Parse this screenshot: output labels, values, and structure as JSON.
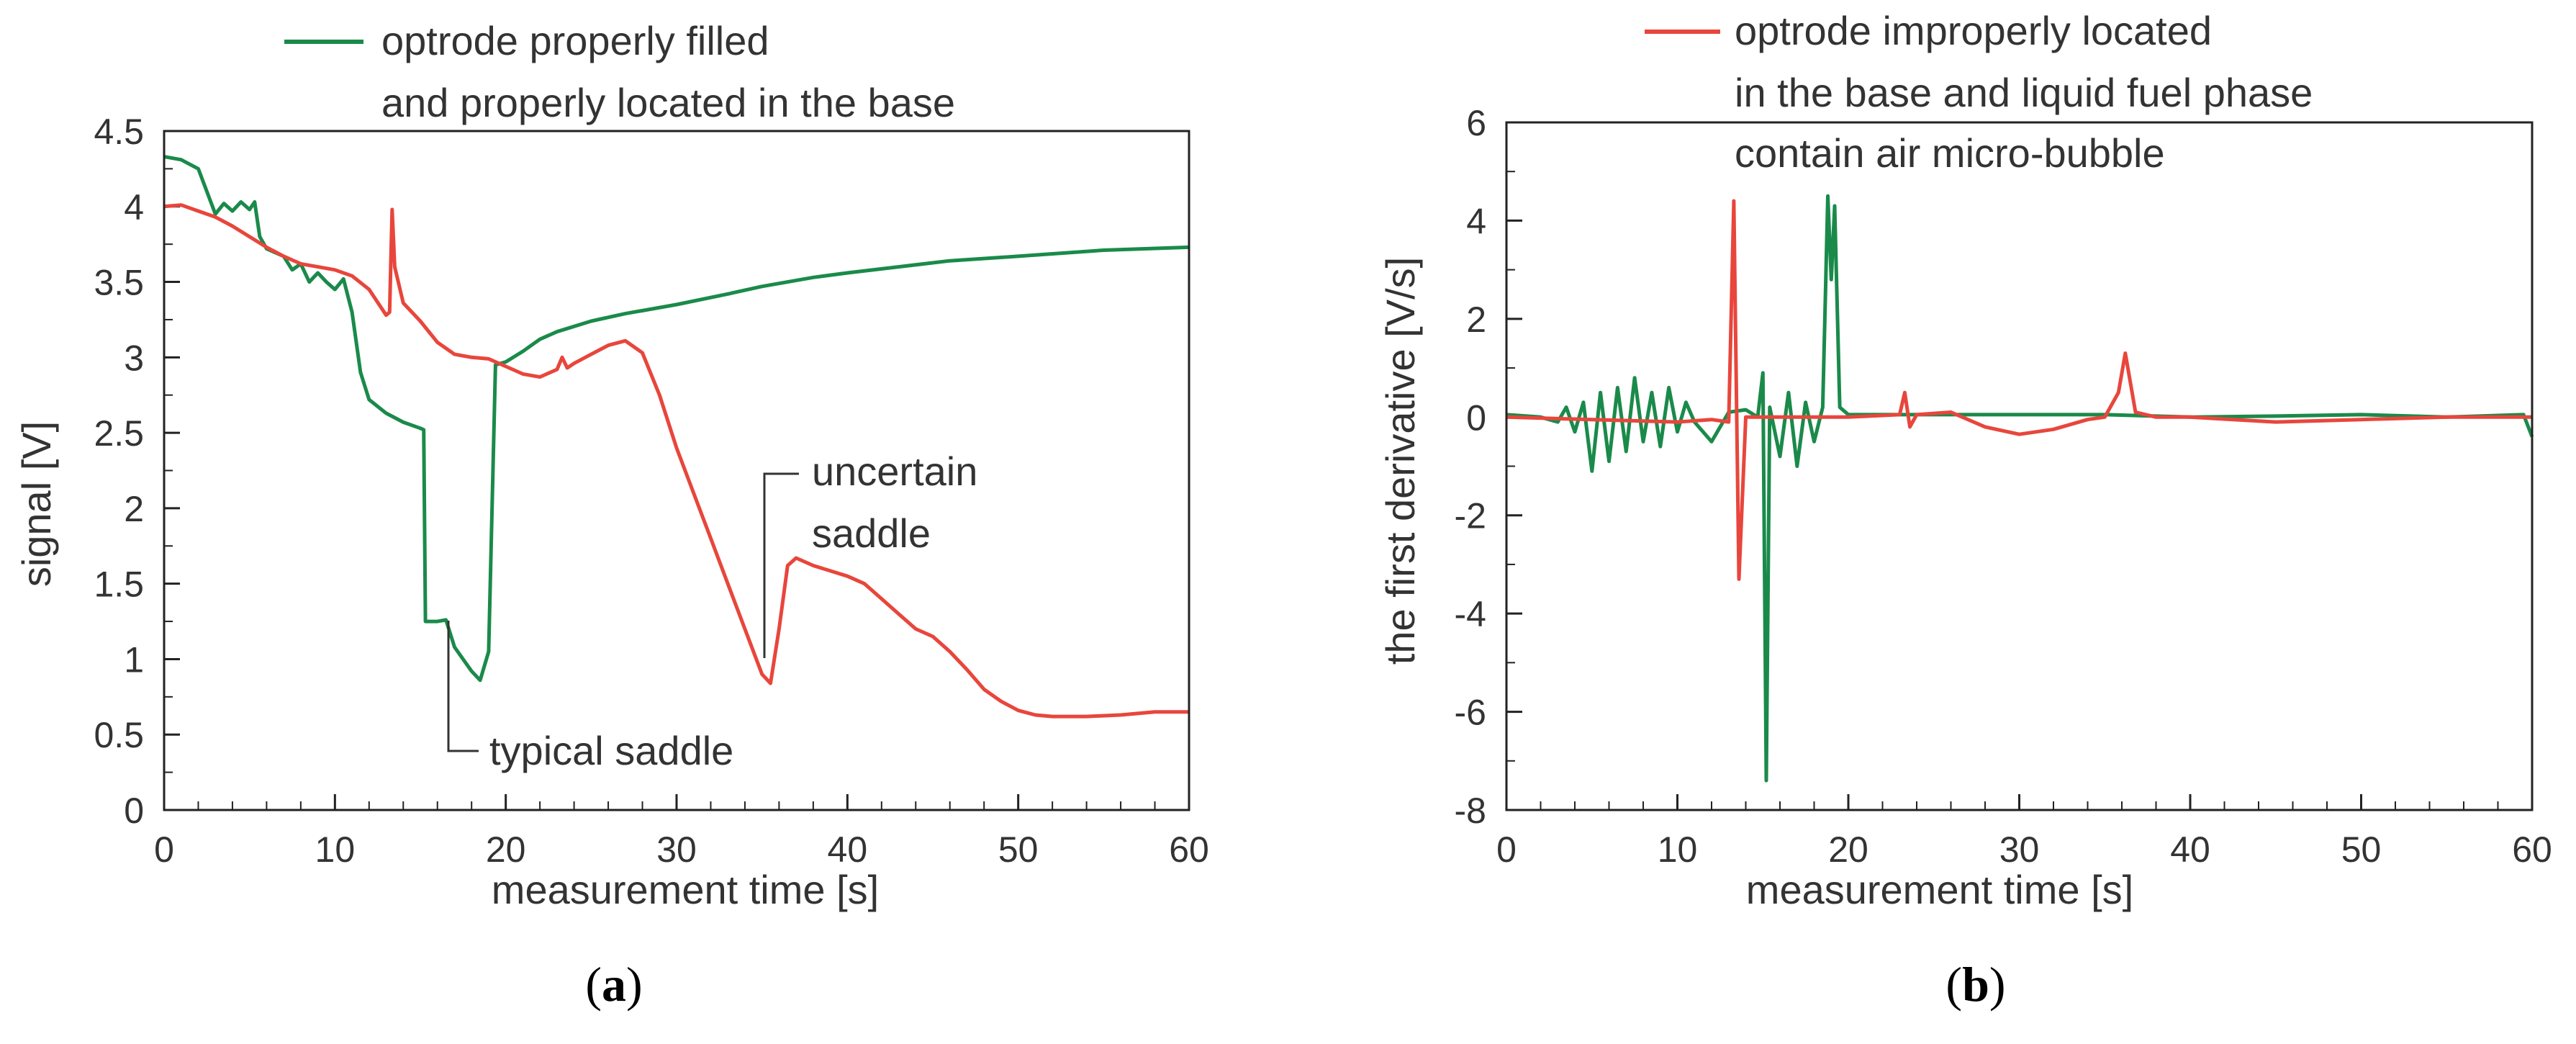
{
  "chart_data": [
    {
      "type": "line",
      "panel_label": "a",
      "xlabel": "measurement time [s]",
      "ylabel": "signal [V]",
      "xlim": [
        0,
        60
      ],
      "ylim": [
        0,
        4.5
      ],
      "xticks": [
        0,
        10,
        20,
        30,
        40,
        50,
        60
      ],
      "yticks": [
        0,
        0.5,
        1,
        1.5,
        2,
        2.5,
        3,
        3.5,
        4,
        4.5
      ],
      "ytick_labels": [
        "0",
        "0.5",
        "1",
        "1.5",
        "2",
        "2.5",
        "3",
        "3.5",
        "4",
        "4.5"
      ],
      "legend": {
        "label_line1": "optrode properly filled",
        "label_line2": "and properly located in the base",
        "color": "#1a8a4a"
      },
      "annotations": [
        {
          "text": "typical saddle",
          "x": 16.5,
          "y": 1.25
        },
        {
          "line1": "uncertain",
          "line2": "saddle",
          "x": 35.2,
          "y": 0.85
        }
      ],
      "series": [
        {
          "name": "optrode properly filled and properly located in the base",
          "color": "#1a8a4a",
          "points": [
            [
              0,
              4.33
            ],
            [
              1,
              4.31
            ],
            [
              2,
              4.25
            ],
            [
              3,
              3.95
            ],
            [
              3.5,
              4.02
            ],
            [
              4,
              3.97
            ],
            [
              4.5,
              4.03
            ],
            [
              5,
              3.98
            ],
            [
              5.3,
              4.03
            ],
            [
              5.6,
              3.8
            ],
            [
              6,
              3.72
            ],
            [
              7,
              3.67
            ],
            [
              7.5,
              3.58
            ],
            [
              8,
              3.62
            ],
            [
              8.5,
              3.5
            ],
            [
              9,
              3.56
            ],
            [
              9.5,
              3.5
            ],
            [
              10,
              3.45
            ],
            [
              10.5,
              3.52
            ],
            [
              11,
              3.3
            ],
            [
              11.5,
              2.9
            ],
            [
              12,
              2.72
            ],
            [
              13,
              2.63
            ],
            [
              14,
              2.57
            ],
            [
              15,
              2.53
            ],
            [
              15.2,
              2.52
            ],
            [
              15.3,
              1.25
            ],
            [
              16,
              1.25
            ],
            [
              16.5,
              1.26
            ],
            [
              17,
              1.08
            ],
            [
              17.5,
              1.0
            ],
            [
              18,
              0.92
            ],
            [
              18.5,
              0.86
            ],
            [
              19,
              1.05
            ],
            [
              19.4,
              2.95
            ],
            [
              20,
              2.97
            ],
            [
              21,
              3.04
            ],
            [
              22,
              3.12
            ],
            [
              23,
              3.17
            ],
            [
              25,
              3.24
            ],
            [
              27,
              3.29
            ],
            [
              30,
              3.35
            ],
            [
              33,
              3.42
            ],
            [
              35,
              3.47
            ],
            [
              38,
              3.53
            ],
            [
              40,
              3.56
            ],
            [
              43,
              3.6
            ],
            [
              46,
              3.64
            ],
            [
              50,
              3.67
            ],
            [
              55,
              3.71
            ],
            [
              60,
              3.73
            ]
          ]
        },
        {
          "name": "optrode improperly located in the base and liquid fuel phase contain air micro-bubble",
          "color": "#e8463c",
          "points": [
            [
              0,
              4.0
            ],
            [
              1,
              4.01
            ],
            [
              2,
              3.97
            ],
            [
              3,
              3.93
            ],
            [
              4,
              3.87
            ],
            [
              5,
              3.8
            ],
            [
              6,
              3.73
            ],
            [
              7,
              3.67
            ],
            [
              8,
              3.62
            ],
            [
              9,
              3.6
            ],
            [
              10,
              3.58
            ],
            [
              11,
              3.54
            ],
            [
              12,
              3.45
            ],
            [
              13,
              3.28
            ],
            [
              13.2,
              3.3
            ],
            [
              13.35,
              3.98
            ],
            [
              13.5,
              3.6
            ],
            [
              14,
              3.36
            ],
            [
              15,
              3.24
            ],
            [
              16,
              3.1
            ],
            [
              17,
              3.02
            ],
            [
              18,
              3.0
            ],
            [
              19,
              2.99
            ],
            [
              20,
              2.94
            ],
            [
              21,
              2.89
            ],
            [
              22,
              2.87
            ],
            [
              23,
              2.92
            ],
            [
              23.3,
              3.0
            ],
            [
              23.6,
              2.93
            ],
            [
              24,
              2.96
            ],
            [
              25,
              3.02
            ],
            [
              26,
              3.08
            ],
            [
              27,
              3.11
            ],
            [
              28,
              3.03
            ],
            [
              29,
              2.75
            ],
            [
              30,
              2.4
            ],
            [
              31,
              2.1
            ],
            [
              32,
              1.8
            ],
            [
              33,
              1.5
            ],
            [
              34,
              1.2
            ],
            [
              35,
              0.9
            ],
            [
              35.5,
              0.84
            ],
            [
              36,
              1.2
            ],
            [
              36.5,
              1.62
            ],
            [
              37,
              1.67
            ],
            [
              38,
              1.62
            ],
            [
              40,
              1.55
            ],
            [
              41,
              1.5
            ],
            [
              42,
              1.4
            ],
            [
              43,
              1.3
            ],
            [
              44,
              1.2
            ],
            [
              45,
              1.15
            ],
            [
              46,
              1.05
            ],
            [
              47,
              0.93
            ],
            [
              48,
              0.8
            ],
            [
              49,
              0.72
            ],
            [
              50,
              0.66
            ],
            [
              51,
              0.63
            ],
            [
              52,
              0.62
            ],
            [
              54,
              0.62
            ],
            [
              56,
              0.63
            ],
            [
              58,
              0.65
            ],
            [
              60,
              0.65
            ]
          ]
        }
      ]
    },
    {
      "type": "line",
      "panel_label": "b",
      "xlabel": "measurement time [s]",
      "ylabel": "the first derivative [V/s]",
      "xlim": [
        0,
        60
      ],
      "ylim": [
        -8,
        6
      ],
      "xticks": [
        0,
        10,
        20,
        30,
        40,
        50,
        60
      ],
      "yticks": [
        -8,
        -6,
        -4,
        -2,
        0,
        2,
        4,
        6
      ],
      "ytick_labels": [
        "-8",
        "-6",
        "-4",
        "-2",
        "0",
        "2",
        "4",
        "6"
      ],
      "legend": {
        "label_line1": "optrode improperly located",
        "label_line2": "in the base and liquid fuel phase",
        "label_line3": "contain air micro-bubble",
        "color": "#e8463c"
      },
      "series": [
        {
          "name": "optrode properly filled and properly located in the base",
          "color": "#1a8a4a",
          "points": [
            [
              0,
              0.05
            ],
            [
              2,
              0.0
            ],
            [
              3,
              -0.1
            ],
            [
              3.5,
              0.2
            ],
            [
              4,
              -0.3
            ],
            [
              4.5,
              0.3
            ],
            [
              5,
              -1.1
            ],
            [
              5.5,
              0.5
            ],
            [
              6,
              -0.9
            ],
            [
              6.5,
              0.6
            ],
            [
              7,
              -0.7
            ],
            [
              7.5,
              0.8
            ],
            [
              8,
              -0.5
            ],
            [
              8.5,
              0.5
            ],
            [
              9,
              -0.6
            ],
            [
              9.5,
              0.6
            ],
            [
              10,
              -0.3
            ],
            [
              10.5,
              0.3
            ],
            [
              11,
              -0.1
            ],
            [
              12,
              -0.5
            ],
            [
              13,
              0.1
            ],
            [
              14,
              0.15
            ],
            [
              14.7,
              0.0
            ],
            [
              15,
              0.9
            ],
            [
              15.2,
              -7.4
            ],
            [
              15.4,
              0.2
            ],
            [
              16,
              -0.8
            ],
            [
              16.5,
              0.5
            ],
            [
              17,
              -1.0
            ],
            [
              17.5,
              0.3
            ],
            [
              18,
              -0.5
            ],
            [
              18.5,
              0.2
            ],
            [
              18.8,
              4.5
            ],
            [
              19,
              2.8
            ],
            [
              19.2,
              4.3
            ],
            [
              19.5,
              0.2
            ],
            [
              20,
              0.05
            ],
            [
              25,
              0.05
            ],
            [
              30,
              0.05
            ],
            [
              35,
              0.05
            ],
            [
              40,
              0.0
            ],
            [
              45,
              0.02
            ],
            [
              50,
              0.05
            ],
            [
              55,
              0.0
            ],
            [
              59.5,
              0.05
            ],
            [
              60,
              -0.4
            ]
          ]
        },
        {
          "name": "optrode improperly located in the base and liquid fuel phase contain air micro-bubble",
          "color": "#e8463c",
          "points": [
            [
              0,
              0.0
            ],
            [
              5,
              -0.05
            ],
            [
              10,
              -0.1
            ],
            [
              12,
              -0.05
            ],
            [
              13,
              -0.1
            ],
            [
              13.3,
              4.4
            ],
            [
              13.6,
              -3.3
            ],
            [
              14,
              0.0
            ],
            [
              17,
              0.0
            ],
            [
              20,
              0.0
            ],
            [
              23,
              0.05
            ],
            [
              23.3,
              0.5
            ],
            [
              23.6,
              -0.2
            ],
            [
              24,
              0.05
            ],
            [
              26,
              0.1
            ],
            [
              28,
              -0.2
            ],
            [
              30,
              -0.35
            ],
            [
              32,
              -0.25
            ],
            [
              34,
              -0.05
            ],
            [
              35,
              0.0
            ],
            [
              35.8,
              0.5
            ],
            [
              36.2,
              1.3
            ],
            [
              36.8,
              0.1
            ],
            [
              38,
              0.0
            ],
            [
              40,
              0.0
            ],
            [
              45,
              -0.1
            ],
            [
              50,
              -0.05
            ],
            [
              55,
              0.0
            ],
            [
              60,
              0.0
            ]
          ]
        }
      ]
    }
  ]
}
